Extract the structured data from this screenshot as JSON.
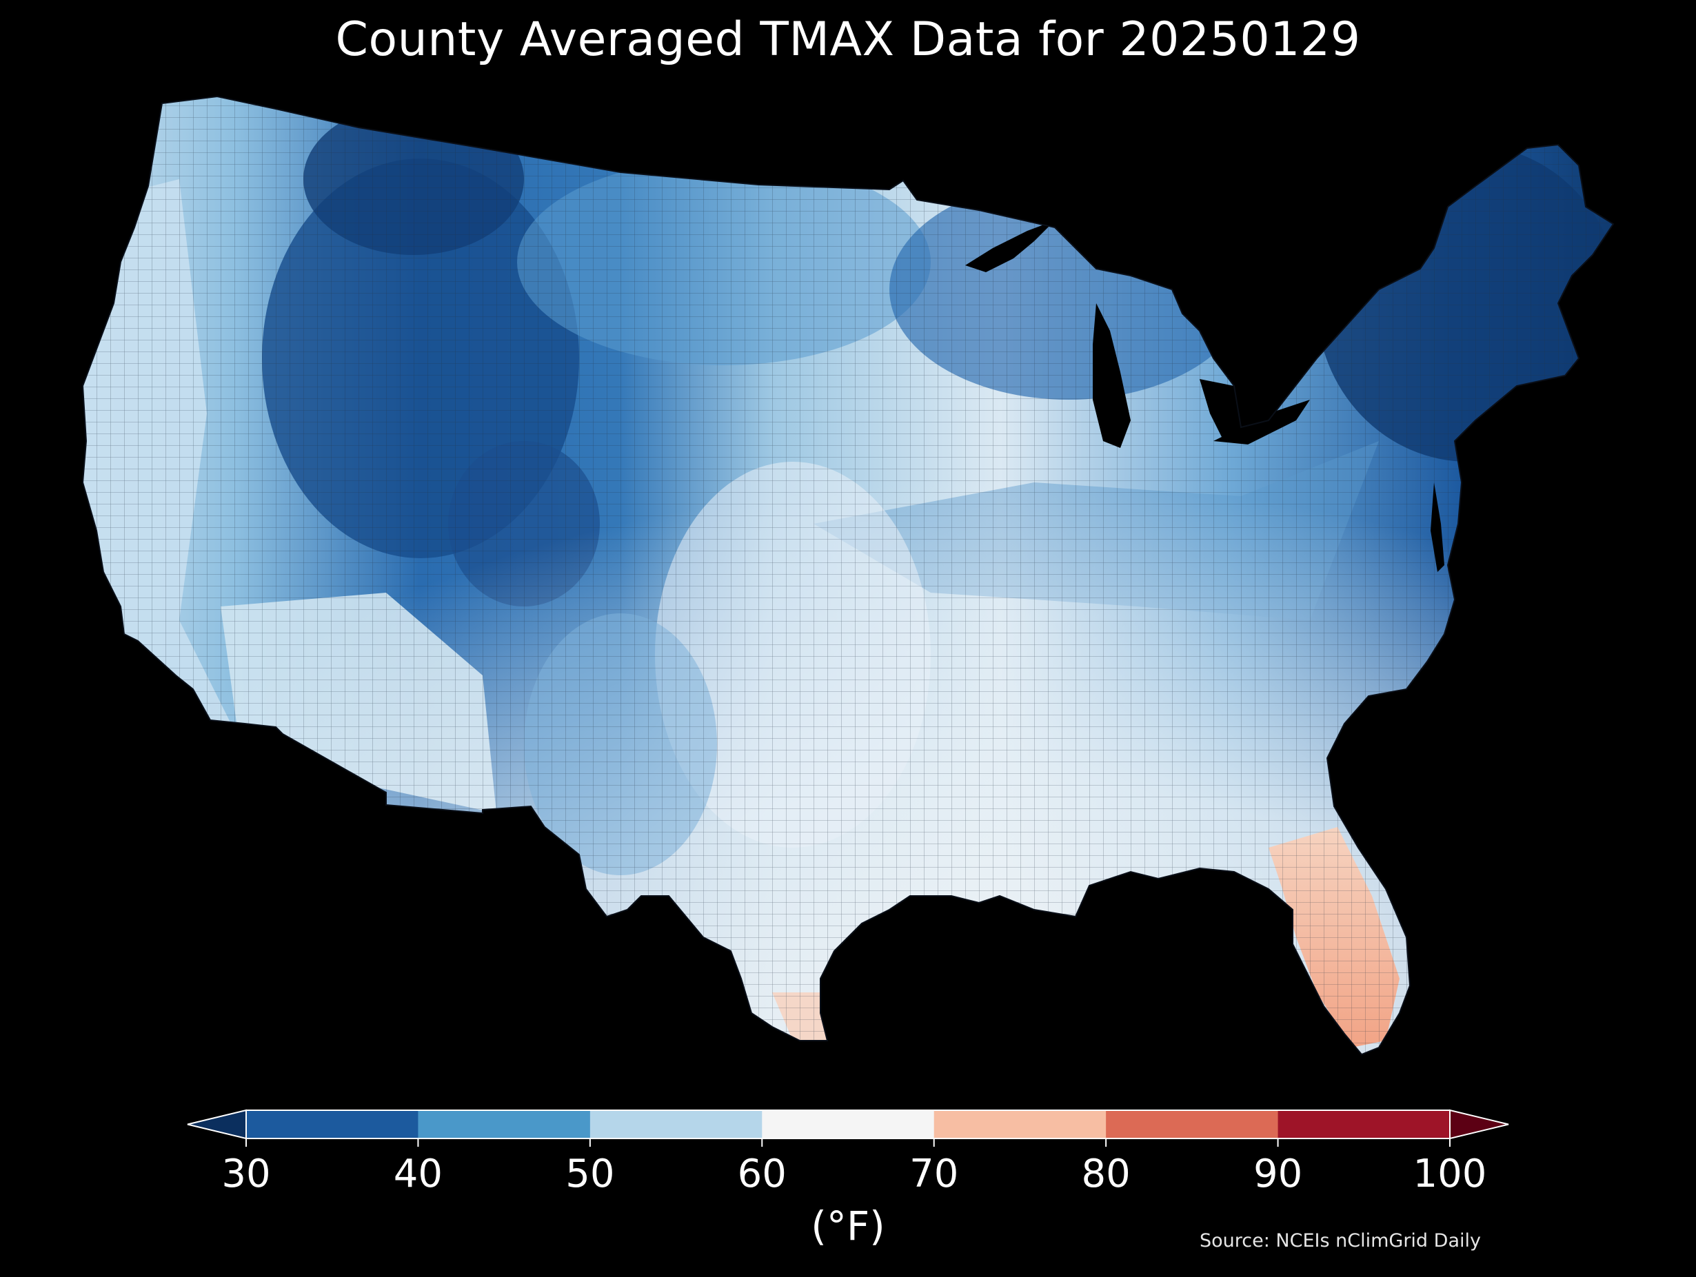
{
  "title": "County Averaged TMAX Data for 20250129",
  "colorbar": {
    "ticks": [
      "30",
      "40",
      "50",
      "60",
      "70",
      "80",
      "90",
      "100"
    ],
    "colors": {
      "under": "#0b2f5e",
      "bins": [
        "#1c5a9e",
        "#4a98c9",
        "#b5d6ea",
        "#f5f5f5",
        "#f7bea3",
        "#dc6a55",
        "#9e1428"
      ],
      "over": "#5c0014"
    },
    "unit_label": "(°F)"
  },
  "source": "Source: NCEIs nClimGrid Daily",
  "map_colors": {
    "background": "#000000",
    "county_border": "#1a2330",
    "water": "#000000",
    "very_cold": "#0e3466",
    "cold": "#1e5fa6",
    "cool": "#3e86c2",
    "mild": "#9cc7e3",
    "pale": "#d6e8f3",
    "near_white": "#eef3f7",
    "warm": "#f6b79a"
  }
}
